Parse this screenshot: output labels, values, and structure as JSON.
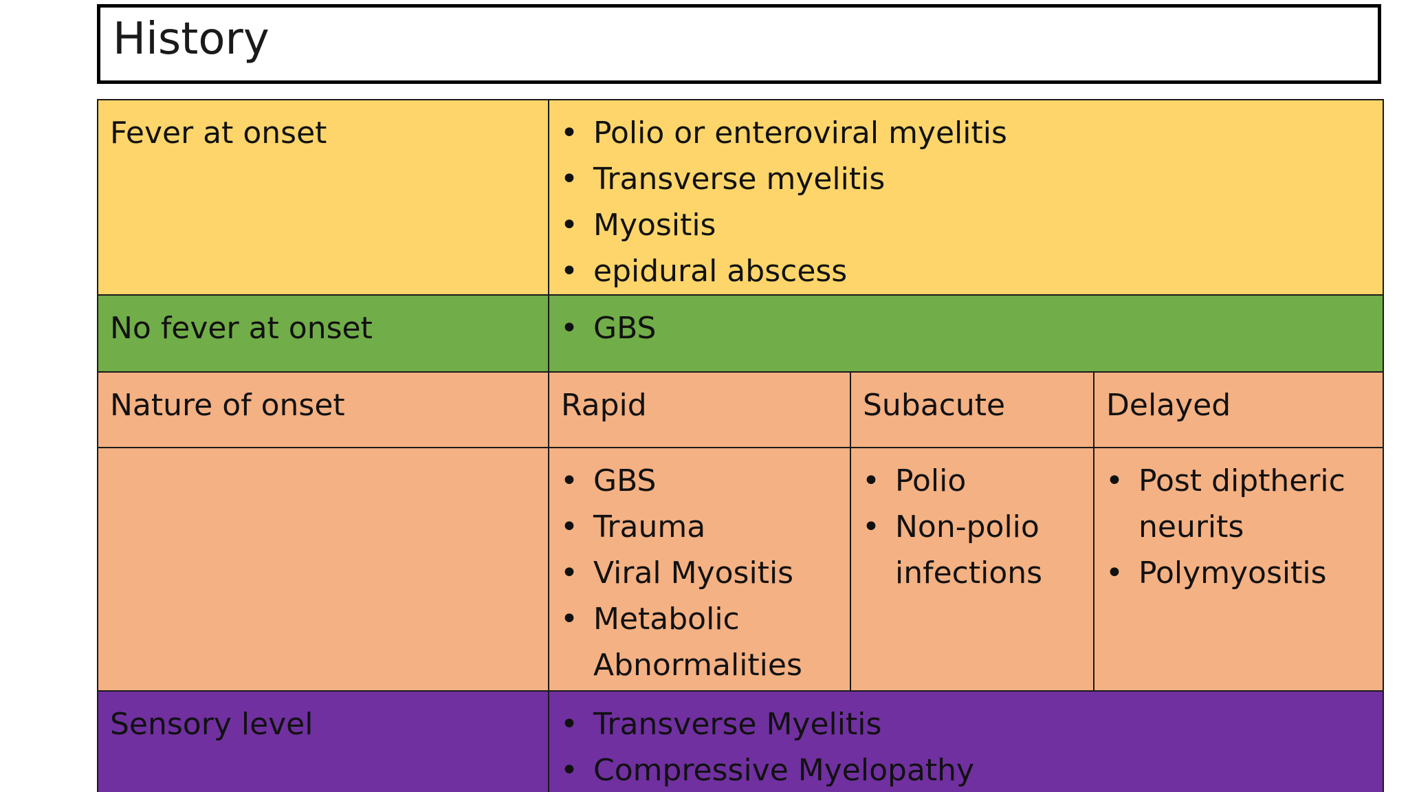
{
  "title": "History",
  "rows": {
    "fever": {
      "label": "Fever at onset",
      "items": [
        "Polio or enteroviral myelitis",
        "Transverse myelitis",
        "Myositis",
        "epidural abscess"
      ]
    },
    "no_fever": {
      "label": "No fever at onset",
      "items": [
        "GBS"
      ]
    },
    "onset": {
      "label": "Nature of onset",
      "columns": [
        {
          "header": "Rapid",
          "items": [
            "GBS",
            "Trauma",
            "Viral Myositis",
            "Metabolic Abnormalities"
          ]
        },
        {
          "header": "Subacute",
          "items": [
            "Polio",
            "Non-polio infections"
          ]
        },
        {
          "header": "Delayed",
          "items": [
            "Post diptheric neurits",
            "Polymyositis"
          ]
        }
      ]
    },
    "sensory": {
      "label": "Sensory level",
      "items": [
        "Transverse Myelitis",
        "Compressive Myelopathy"
      ]
    }
  },
  "colors": {
    "fever": "#fdd56a",
    "no_fever": "#71ad48",
    "onset": "#f4b183",
    "sensory": "#7030a0"
  }
}
